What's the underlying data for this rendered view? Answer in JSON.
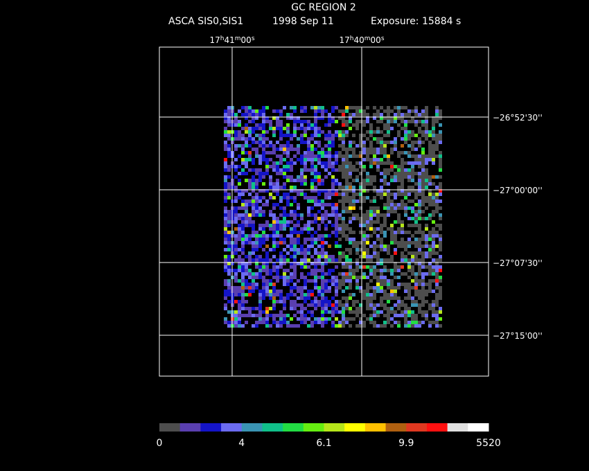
{
  "header": {
    "title": "GC REGION 2",
    "instrument": "ASCA SIS0,SIS1",
    "date": "1998 Sep 11",
    "exposure": "Exposure: 15884 s"
  },
  "ra_labels": [
    [
      "17",
      "h",
      "41",
      "m",
      "00",
      "s"
    ],
    [
      "17",
      "h",
      "40",
      "m",
      "00",
      "s"
    ]
  ],
  "dec_labels": [
    "−26°52'30''",
    "−27°00'00''",
    "−27°07'30''",
    "−27°15'00''"
  ],
  "colorbar": {
    "colors": [
      "#4d4d4d",
      "#5a3fb0",
      "#1414c8",
      "#6b6bf0",
      "#3a94b4",
      "#10c08a",
      "#22dd44",
      "#66ee11",
      "#b6e61a",
      "#ffff00",
      "#ffc000",
      "#b06010",
      "#e03820",
      "#ff1010",
      "#e0e0e0",
      "#ffffff"
    ],
    "labels": [
      "0",
      "4",
      "6.1",
      "9.9",
      "5520"
    ]
  }
}
